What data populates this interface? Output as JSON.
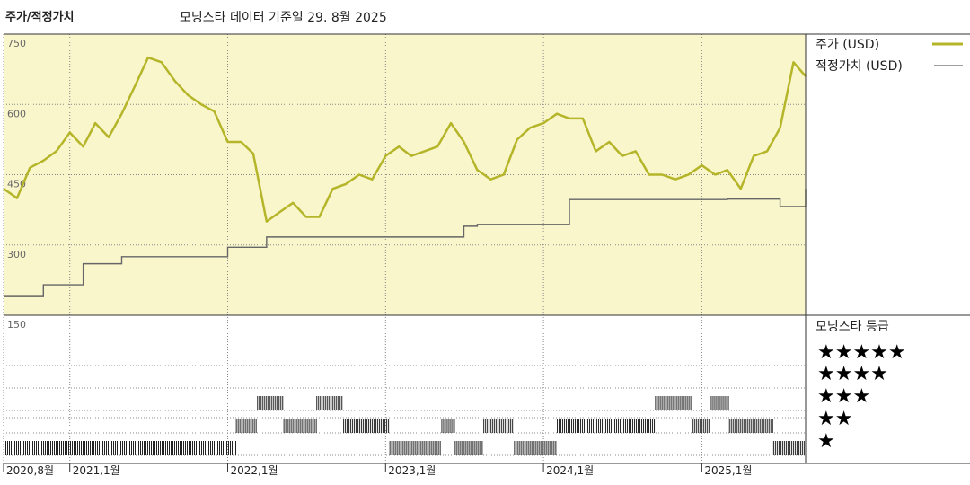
{
  "header": {
    "title": "주가/적정가치",
    "subtitle": "모닝스타 데이터 기준일 29. 8월 2025"
  },
  "colors": {
    "panel_bg": "#faf6cc",
    "price": "#b5b52a",
    "fair": "#666666",
    "rating": "#222222"
  },
  "legend": {
    "price_label": "주가 (USD)",
    "fair_label": "적정가치 (USD)",
    "rating_title": "모닝스타 등급",
    "stars": [
      "★★★★★",
      "★★★★",
      "★★★",
      "★★",
      "★"
    ]
  },
  "chart_data": {
    "type": "line",
    "xlim": [
      "2020-08-01",
      "2025-08-29"
    ],
    "ylim": [
      150,
      750
    ],
    "yticks": [
      150,
      300,
      450,
      600,
      750
    ],
    "xticks": [
      {
        "date": "2020-08-01",
        "label": "2020,8월"
      },
      {
        "date": "2021-01-01",
        "label": "2021,1월"
      },
      {
        "date": "2022-01-01",
        "label": "2022,1월"
      },
      {
        "date": "2023-01-01",
        "label": "2023,1월"
      },
      {
        "date": "2024-01-01",
        "label": "2024,1월"
      },
      {
        "date": "2025-01-01",
        "label": "2025,1월"
      }
    ],
    "series": [
      {
        "name": "주가 (USD)",
        "x": [
          "2020-08-01",
          "2020-09-01",
          "2020-10-01",
          "2020-11-01",
          "2020-12-01",
          "2021-01-01",
          "2021-02-01",
          "2021-03-01",
          "2021-04-01",
          "2021-05-01",
          "2021-06-01",
          "2021-07-01",
          "2021-08-01",
          "2021-09-01",
          "2021-10-01",
          "2021-11-01",
          "2021-12-01",
          "2022-01-01",
          "2022-02-01",
          "2022-03-01",
          "2022-04-01",
          "2022-05-01",
          "2022-06-01",
          "2022-07-01",
          "2022-08-01",
          "2022-09-01",
          "2022-10-01",
          "2022-11-01",
          "2022-12-01",
          "2023-01-01",
          "2023-02-01",
          "2023-03-01",
          "2023-04-01",
          "2023-05-01",
          "2023-06-01",
          "2023-07-01",
          "2023-08-01",
          "2023-09-01",
          "2023-10-01",
          "2023-11-01",
          "2023-12-01",
          "2024-01-01",
          "2024-02-01",
          "2024-03-01",
          "2024-04-01",
          "2024-05-01",
          "2024-06-01",
          "2024-07-01",
          "2024-08-01",
          "2024-09-01",
          "2024-10-01",
          "2024-11-01",
          "2024-12-01",
          "2025-01-01",
          "2025-02-01",
          "2025-03-01",
          "2025-04-01",
          "2025-05-01",
          "2025-06-01",
          "2025-07-01",
          "2025-08-01",
          "2025-08-29"
        ],
        "y": [
          420,
          400,
          465,
          480,
          500,
          540,
          510,
          560,
          530,
          580,
          640,
          700,
          690,
          650,
          620,
          600,
          585,
          520,
          520,
          495,
          350,
          370,
          390,
          360,
          360,
          420,
          430,
          450,
          440,
          490,
          510,
          490,
          500,
          510,
          560,
          520,
          460,
          440,
          450,
          525,
          550,
          560,
          580,
          570,
          570,
          500,
          520,
          490,
          500,
          450,
          450,
          440,
          450,
          470,
          450,
          460,
          420,
          490,
          500,
          550,
          690,
          660
        ]
      },
      {
        "name": "적정가치 (USD)",
        "x": [
          "2020-08-01",
          "2020-11-01",
          "2021-02-01",
          "2021-05-01",
          "2022-01-01",
          "2022-04-01",
          "2023-07-01",
          "2023-08-01",
          "2024-03-01",
          "2025-03-01",
          "2025-07-01",
          "2025-08-29"
        ],
        "y": [
          190,
          215,
          260,
          275,
          295,
          317,
          340,
          344,
          397,
          398,
          382,
          420
        ]
      }
    ],
    "rating_levels": [
      1,
      2,
      3,
      4,
      5
    ],
    "ratings": [
      {
        "start": "2020-08-01",
        "end": "2022-01-20",
        "stars": 1
      },
      {
        "start": "2022-01-20",
        "end": "2022-03-10",
        "stars": 2
      },
      {
        "start": "2022-03-10",
        "end": "2022-05-10",
        "stars": 3
      },
      {
        "start": "2022-05-10",
        "end": "2022-07-25",
        "stars": 2
      },
      {
        "start": "2022-07-25",
        "end": "2022-09-25",
        "stars": 3
      },
      {
        "start": "2022-09-25",
        "end": "2023-01-10",
        "stars": 2
      },
      {
        "start": "2023-01-10",
        "end": "2023-05-10",
        "stars": 1
      },
      {
        "start": "2023-05-10",
        "end": "2023-06-10",
        "stars": 2
      },
      {
        "start": "2023-06-10",
        "end": "2023-08-15",
        "stars": 1
      },
      {
        "start": "2023-08-15",
        "end": "2023-10-25",
        "stars": 2
      },
      {
        "start": "2023-10-25",
        "end": "2024-02-01",
        "stars": 1
      },
      {
        "start": "2024-02-01",
        "end": "2024-09-15",
        "stars": 2
      },
      {
        "start": "2024-09-15",
        "end": "2024-12-10",
        "stars": 3
      },
      {
        "start": "2024-12-10",
        "end": "2025-01-20",
        "stars": 2
      },
      {
        "start": "2025-01-20",
        "end": "2025-03-05",
        "stars": 3
      },
      {
        "start": "2025-03-05",
        "end": "2025-06-15",
        "stars": 2
      },
      {
        "start": "2025-06-15",
        "end": "2025-08-29",
        "stars": 1
      }
    ]
  }
}
